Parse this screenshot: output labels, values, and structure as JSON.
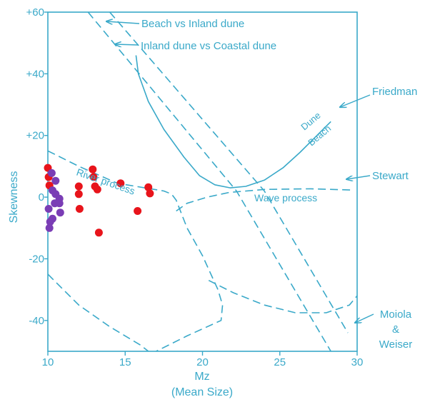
{
  "colors": {
    "axis": "#3aa9c9",
    "red_points": "#e8141b",
    "purple_points": "#7a3db5"
  },
  "chart_data": {
    "type": "scatter",
    "title": "",
    "xlabel": "Mz",
    "xlabel_sub": "(Mean Size)",
    "ylabel": "Skewness",
    "xlim": [
      10,
      30
    ],
    "ylim": [
      -50,
      60
    ],
    "x_ticks": [
      {
        "value": 10,
        "label": "10"
      },
      {
        "value": 15,
        "label": "15"
      },
      {
        "value": 20,
        "label": "20"
      },
      {
        "value": 25,
        "label": "25"
      },
      {
        "value": 30,
        "label": "30"
      }
    ],
    "y_ticks": [
      {
        "value": 60,
        "label": "+60"
      },
      {
        "value": 40,
        "label": "+40"
      },
      {
        "value": 20,
        "label": "+20"
      },
      {
        "value": 0,
        "label": "0"
      },
      {
        "value": -20,
        "label": "-20"
      },
      {
        "value": -40,
        "label": "-40"
      }
    ],
    "series": [
      {
        "color": "#e8141b",
        "points": [
          [
            10.0,
            9.5
          ],
          [
            10.05,
            6.5
          ],
          [
            10.1,
            3.8
          ],
          [
            12.0,
            3.5
          ],
          [
            12.0,
            1.0
          ],
          [
            12.05,
            -3.8
          ],
          [
            12.9,
            9.0
          ],
          [
            12.95,
            6.5
          ],
          [
            13.05,
            3.5
          ],
          [
            13.2,
            2.5
          ],
          [
            14.7,
            4.5
          ],
          [
            15.8,
            -4.5
          ],
          [
            13.3,
            -11.5
          ],
          [
            16.5,
            3.2
          ],
          [
            16.6,
            1.2
          ]
        ]
      },
      {
        "color": "#7a3db5",
        "points": [
          [
            10.25,
            7.8
          ],
          [
            10.5,
            5.3
          ],
          [
            10.3,
            2.2
          ],
          [
            10.5,
            1.0
          ],
          [
            10.75,
            -0.5
          ],
          [
            10.45,
            -2.0
          ],
          [
            10.75,
            -2.0
          ],
          [
            10.05,
            -3.8
          ],
          [
            10.8,
            -5.0
          ],
          [
            10.3,
            -7.0
          ],
          [
            10.15,
            -8.0
          ],
          [
            10.1,
            -10.0
          ]
        ]
      }
    ],
    "curves": [
      {
        "name": "Friedman-curve",
        "style": "solid",
        "points": [
          [
            15.7,
            46
          ],
          [
            15.85,
            40
          ],
          [
            16.5,
            31
          ],
          [
            17.5,
            22
          ],
          [
            18.8,
            13
          ],
          [
            19.8,
            7
          ],
          [
            20.8,
            4
          ],
          [
            21.8,
            3
          ],
          [
            22.8,
            3.5
          ],
          [
            24,
            5.5
          ],
          [
            25.2,
            9.5
          ],
          [
            26.3,
            14.5
          ],
          [
            27.3,
            19.5
          ],
          [
            27.9,
            22.5
          ],
          [
            28.3,
            24.5
          ]
        ]
      },
      {
        "name": "beach-vs-inland-dune-line",
        "style": "dashed",
        "points": [
          [
            12.6,
            60
          ],
          [
            22.2,
            2
          ],
          [
            28.3,
            -50
          ]
        ]
      },
      {
        "name": "inland-vs-coastal-dune-line",
        "style": "dashed",
        "points": [
          [
            14,
            60
          ],
          [
            24,
            2
          ],
          [
            29.4,
            -44
          ]
        ]
      },
      {
        "name": "river-process-boundary",
        "style": "dashed",
        "points": [
          [
            10,
            15
          ],
          [
            12,
            10
          ],
          [
            14.5,
            4.5
          ],
          [
            17.5,
            2
          ],
          [
            18,
            1
          ],
          [
            18.3,
            -1
          ],
          [
            19,
            -10
          ],
          [
            20,
            -19
          ],
          [
            21,
            -30
          ],
          [
            21.3,
            -35
          ],
          [
            21.2,
            -40
          ],
          [
            19,
            -45
          ],
          [
            17.8,
            -48
          ],
          [
            17,
            -50
          ]
        ]
      },
      {
        "name": "lower-left-boundary",
        "style": "dashed",
        "points": [
          [
            10,
            -25
          ],
          [
            12,
            -35
          ],
          [
            14,
            -42
          ],
          [
            16,
            -48
          ],
          [
            16.5,
            -50
          ]
        ]
      },
      {
        "name": "Stewart-line",
        "style": "dashed",
        "points": [
          [
            18.3,
            -4.5
          ],
          [
            19,
            -2
          ],
          [
            20.3,
            0
          ],
          [
            21.7,
            1.5
          ],
          [
            24,
            2.5
          ],
          [
            27,
            2.7
          ],
          [
            29.8,
            2.3
          ]
        ]
      },
      {
        "name": "Moiola-Weiser-line",
        "style": "dashed",
        "points": [
          [
            20.4,
            -27
          ],
          [
            22,
            -31
          ],
          [
            24,
            -35
          ],
          [
            26,
            -37.5
          ],
          [
            28,
            -37.5
          ],
          [
            29.5,
            -35
          ],
          [
            30,
            -32
          ]
        ]
      }
    ],
    "annotations": [
      {
        "name": "Beach vs Inland dune",
        "text": "Beach vs Inland dune"
      },
      {
        "name": "Inland dune vs Coastal dune",
        "text": "Inland dune vs Coastal dune"
      },
      {
        "name": "Friedman",
        "text": "Friedman"
      },
      {
        "name": "Dune",
        "text": "Dune"
      },
      {
        "name": "Beach",
        "text": "Beach"
      },
      {
        "name": "River process",
        "text": "River process"
      },
      {
        "name": "Stewart",
        "text": "Stewart"
      },
      {
        "name": "Wave process",
        "text": "Wave process"
      },
      {
        "name": "Moiola",
        "text": "Moiola"
      },
      {
        "name": "ampersand",
        "text": "&"
      },
      {
        "name": "Weiser",
        "text": "Weiser"
      }
    ]
  }
}
